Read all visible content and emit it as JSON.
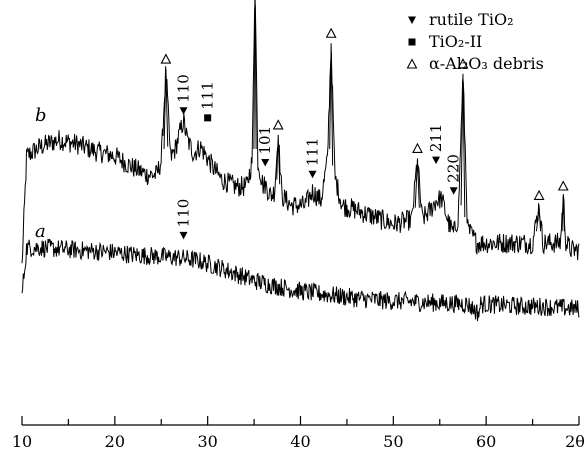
{
  "chart_data": {
    "type": "line",
    "xlim": [
      10,
      70
    ],
    "x_tick_labels": [
      "10",
      "20",
      "30",
      "40",
      "50",
      "60",
      "2θ°"
    ],
    "x_ticks": [
      10,
      15,
      20,
      25,
      30,
      35,
      40,
      45,
      50,
      55,
      60,
      65,
      70
    ],
    "legend": [
      {
        "symbol": "filled-down-triangle",
        "label": "rutile TiO₂"
      },
      {
        "symbol": "filled-square",
        "label": "TiO₂-II"
      },
      {
        "symbol": "open-up-triangle",
        "label": "α-Al₂O₃ debris"
      }
    ],
    "series": [
      {
        "name": "b",
        "x": [
          10.0,
          10.5,
          12,
          14,
          16,
          18,
          20,
          22,
          23.5,
          24.5,
          25.0,
          25.5,
          26.0,
          26.5,
          27.0,
          27.4,
          27.8,
          28.5,
          29.2,
          30.0,
          30.6,
          31.5,
          33,
          34.2,
          34.8,
          35.1,
          35.4,
          36.0,
          36.2,
          36.8,
          37.2,
          37.6,
          38.0,
          39,
          40.5,
          41.3,
          42.2,
          42.9,
          43.3,
          43.7,
          44.5,
          46,
          48,
          50,
          52.0,
          52.6,
          53.1,
          54.0,
          54.6,
          55.2,
          56.0,
          56.5,
          57.0,
          57.5,
          58.0,
          59,
          61,
          63,
          65.0,
          65.7,
          66.1,
          67,
          68.0,
          68.3,
          68.6,
          69.2,
          70
        ],
        "y": [
          0.1,
          0.57,
          0.61,
          0.64,
          0.62,
          0.59,
          0.57,
          0.52,
          0.49,
          0.49,
          0.55,
          0.94,
          0.56,
          0.6,
          0.67,
          0.72,
          0.64,
          0.58,
          0.61,
          0.56,
          0.52,
          0.47,
          0.44,
          0.44,
          0.55,
          1.33,
          0.55,
          0.44,
          0.45,
          0.4,
          0.42,
          0.66,
          0.4,
          0.36,
          0.36,
          0.42,
          0.38,
          0.55,
          1.05,
          0.48,
          0.36,
          0.34,
          0.31,
          0.28,
          0.3,
          0.56,
          0.3,
          0.34,
          0.38,
          0.39,
          0.28,
          0.24,
          0.31,
          0.92,
          0.26,
          0.2,
          0.2,
          0.2,
          0.2,
          0.36,
          0.2,
          0.2,
          0.2,
          0.4,
          0.2,
          0.17,
          0.17
        ]
      },
      {
        "name": "a",
        "x": [
          10.0,
          10.5,
          12,
          14,
          16,
          18,
          20,
          22,
          24,
          26,
          27.5,
          29,
          31,
          33,
          35,
          37,
          40,
          43,
          46,
          49,
          52,
          55,
          58,
          59.2,
          59.4,
          60,
          62,
          64,
          66,
          68,
          70
        ],
        "y": [
          -0.02,
          0.18,
          0.18,
          0.175,
          0.17,
          0.165,
          0.16,
          0.15,
          0.145,
          0.14,
          0.135,
          0.125,
          0.1,
          0.07,
          0.04,
          0.02,
          -0.005,
          -0.02,
          -0.035,
          -0.045,
          -0.05,
          -0.055,
          -0.06,
          -0.1,
          -0.06,
          -0.06,
          -0.065,
          -0.07,
          -0.07,
          -0.075,
          -0.08
        ]
      }
    ],
    "trace_labels": [
      {
        "text": "b",
        "x": 11.4,
        "y": 0.72
      },
      {
        "text": "a",
        "x": 11.4,
        "y": 0.225
      }
    ],
    "markers": [
      {
        "series": "b",
        "symbol": "open-up-triangle",
        "x": 25.5,
        "y": 0.94
      },
      {
        "series": "b",
        "symbol": "filled-down-triangle",
        "x": 27.4,
        "y": 0.72,
        "label": "110"
      },
      {
        "series": "b",
        "symbol": "filled-square",
        "x": 30.0,
        "y": 0.69,
        "label": "111"
      },
      {
        "series": "b",
        "symbol": "open-up-triangle",
        "x": 35.1,
        "y": 1.33
      },
      {
        "series": "b",
        "symbol": "filled-down-triangle",
        "x": 36.2,
        "y": 0.5,
        "label": "101"
      },
      {
        "series": "b",
        "symbol": "open-up-triangle",
        "x": 37.6,
        "y": 0.66
      },
      {
        "series": "b",
        "symbol": "filled-down-triangle",
        "x": 41.3,
        "y": 0.45,
        "label": "111"
      },
      {
        "series": "b",
        "symbol": "open-up-triangle",
        "x": 43.3,
        "y": 1.05
      },
      {
        "series": "b",
        "symbol": "open-up-triangle",
        "x": 52.6,
        "y": 0.56
      },
      {
        "series": "b",
        "symbol": "filled-down-triangle",
        "x": 54.6,
        "y": 0.51,
        "label": "211"
      },
      {
        "series": "b",
        "symbol": "filled-down-triangle",
        "x": 56.5,
        "y": 0.38,
        "label": "220"
      },
      {
        "series": "b",
        "symbol": "open-up-triangle",
        "x": 57.5,
        "y": 0.92
      },
      {
        "series": "b",
        "symbol": "open-up-triangle",
        "x": 65.7,
        "y": 0.36
      },
      {
        "series": "b",
        "symbol": "open-up-triangle",
        "x": 68.3,
        "y": 0.4
      },
      {
        "series": "a",
        "symbol": "filled-down-triangle",
        "x": 27.4,
        "y": 0.19,
        "label": "110"
      }
    ],
    "grid": false,
    "legend_position": "top-right"
  }
}
